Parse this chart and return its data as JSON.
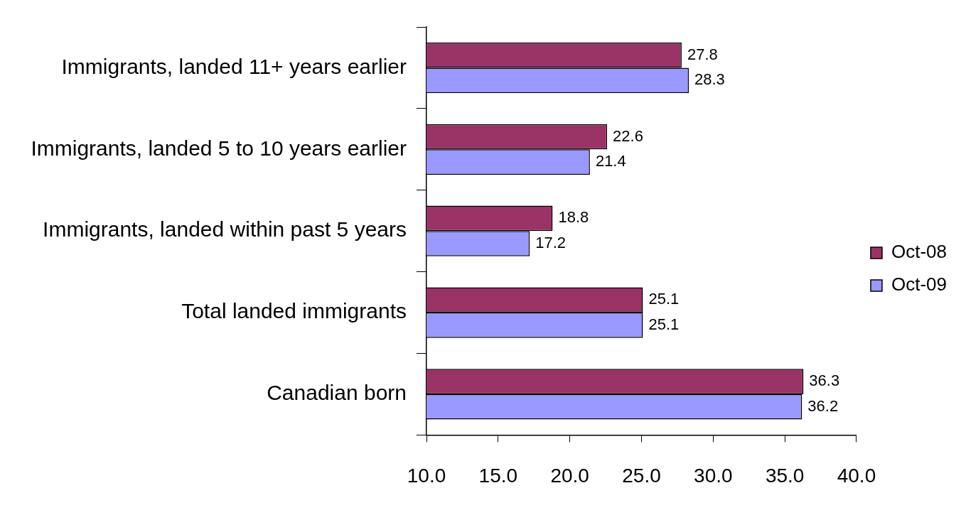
{
  "chart_data": {
    "type": "bar",
    "orientation": "horizontal",
    "categories": [
      "Immigrants, landed 11+ years earlier",
      "Immigrants, landed 5 to 10 years earlier",
      "Immigrants, landed within past 5 years",
      "Total landed immigrants",
      "Canadian born"
    ],
    "series": [
      {
        "name": "Oct-08",
        "color": "#993366",
        "values": [
          27.8,
          22.6,
          18.8,
          25.1,
          36.3
        ]
      },
      {
        "name": "Oct-09",
        "color": "#9999ff",
        "values": [
          28.3,
          21.4,
          17.2,
          25.1,
          36.2
        ]
      }
    ],
    "xlim": [
      10,
      40
    ],
    "xticks": [
      {
        "value": 10,
        "label": "10.0"
      },
      {
        "value": 15,
        "label": "15.0"
      },
      {
        "value": 20,
        "label": "20.0"
      },
      {
        "value": 25,
        "label": "25.0"
      },
      {
        "value": 30,
        "label": "30.0"
      },
      {
        "value": 35,
        "label": "35.0"
      },
      {
        "value": 40,
        "label": "40.0"
      }
    ],
    "data_labels": true,
    "grid": false,
    "legend": "right"
  }
}
